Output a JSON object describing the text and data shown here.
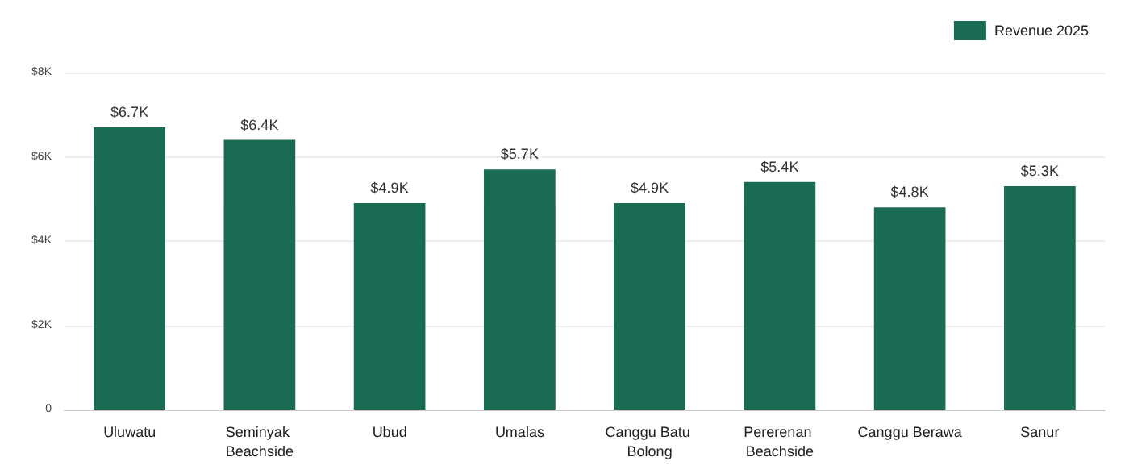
{
  "chart_data": {
    "type": "bar",
    "categories": [
      "Uluwatu",
      "Seminyak Beachside",
      "Ubud",
      "Umalas",
      "Canggu Batu Bolong",
      "Pererenan Beachside",
      "Canggu Berawa",
      "Sanur"
    ],
    "series": [
      {
        "name": "Revenue 2025",
        "color": "#1a6b54",
        "values": [
          6700,
          6400,
          4900,
          5700,
          4900,
          5400,
          4800,
          5300
        ],
        "value_labels": [
          "$6.7K",
          "$6.4K",
          "$4.9K",
          "$5.7K",
          "$4.9K",
          "$5.4K",
          "$4.8K",
          "$5.3K"
        ]
      }
    ],
    "ylim": [
      0,
      8000
    ],
    "yticks": [
      0,
      {
        "value": 2000,
        "label": "$2K"
      },
      {
        "value": 4000,
        "label": "$4K"
      },
      {
        "value": 6000,
        "label": "$6K"
      },
      {
        "value": 8000,
        "label": "$8K"
      }
    ],
    "grid": "y",
    "legend": "top right"
  }
}
